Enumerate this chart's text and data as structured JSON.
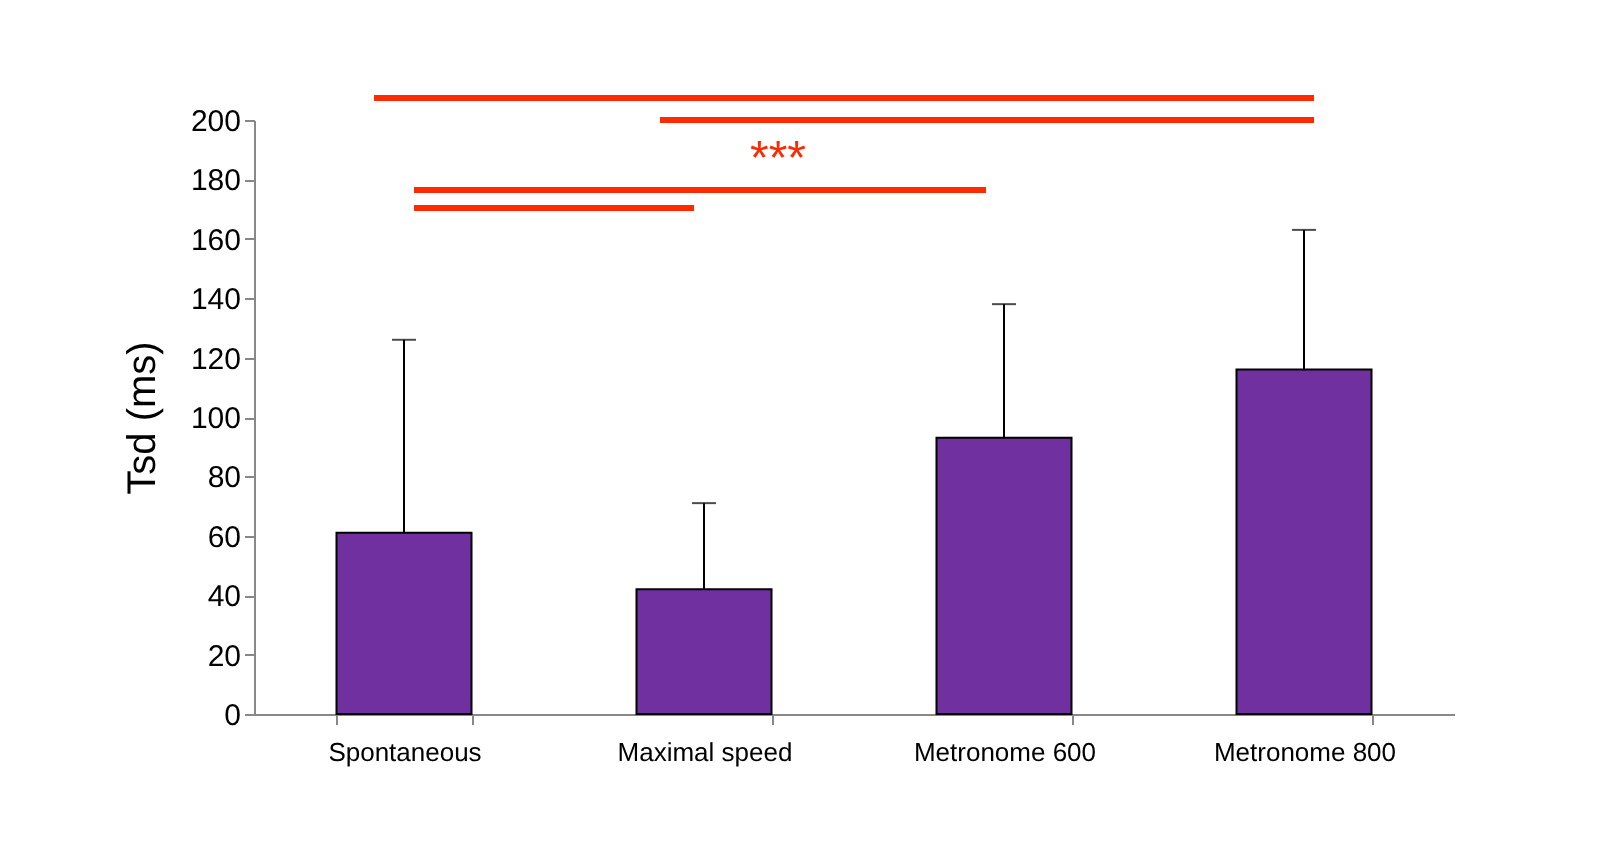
{
  "chart_data": {
    "type": "bar",
    "ylabel": "Tsd (ms)",
    "categories": [
      "Spontaneous",
      "Maximal  speed",
      "Metronome  600",
      "Metronome  800"
    ],
    "values": [
      61,
      42,
      93,
      116
    ],
    "errors": [
      [
        61,
        126
      ],
      [
        42,
        71
      ],
      [
        93,
        138
      ],
      [
        116,
        163
      ]
    ],
    "color": "#7030a0",
    "ylim": [
      0,
      200
    ],
    "yticks": [
      0,
      20,
      40,
      60,
      80,
      100,
      120,
      140,
      160,
      180,
      200
    ],
    "grid": false,
    "annotations": [
      "***"
    ]
  }
}
